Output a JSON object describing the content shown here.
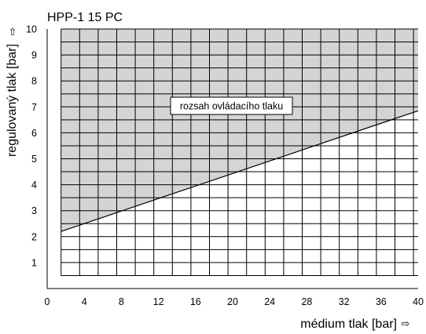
{
  "chart_data": {
    "type": "area",
    "title": "HPP-1 15 PC",
    "xlabel": "médium tlak [bar]",
    "ylabel": "regulovaný tlak [bar]",
    "x_arrow_icon": "right-outline-arrow-icon",
    "y_arrow_icon": "up-outline-arrow-icon",
    "x_ticks": [
      0,
      4,
      8,
      12,
      16,
      20,
      24,
      28,
      32,
      36,
      40
    ],
    "y_ticks": [
      1,
      2,
      3,
      4,
      5,
      6,
      7,
      8,
      9,
      10
    ],
    "xlim": [
      0,
      40
    ],
    "ylim": [
      0,
      10
    ],
    "grid": true,
    "x_grid_step": 2,
    "y_grid_step": 0.5,
    "series": [
      {
        "x": [
          1.5,
          40
        ],
        "y": [
          2.2,
          6.85
        ]
      }
    ],
    "shaded_region": {
      "label": "rozsah ovládacího tlaku",
      "bounded_by": "line-to-top",
      "x_range": [
        1.5,
        40
      ],
      "y_top": 10
    },
    "colors": {
      "fill": "#d4d4d4",
      "grid": "#000000",
      "line": "#000000"
    }
  }
}
